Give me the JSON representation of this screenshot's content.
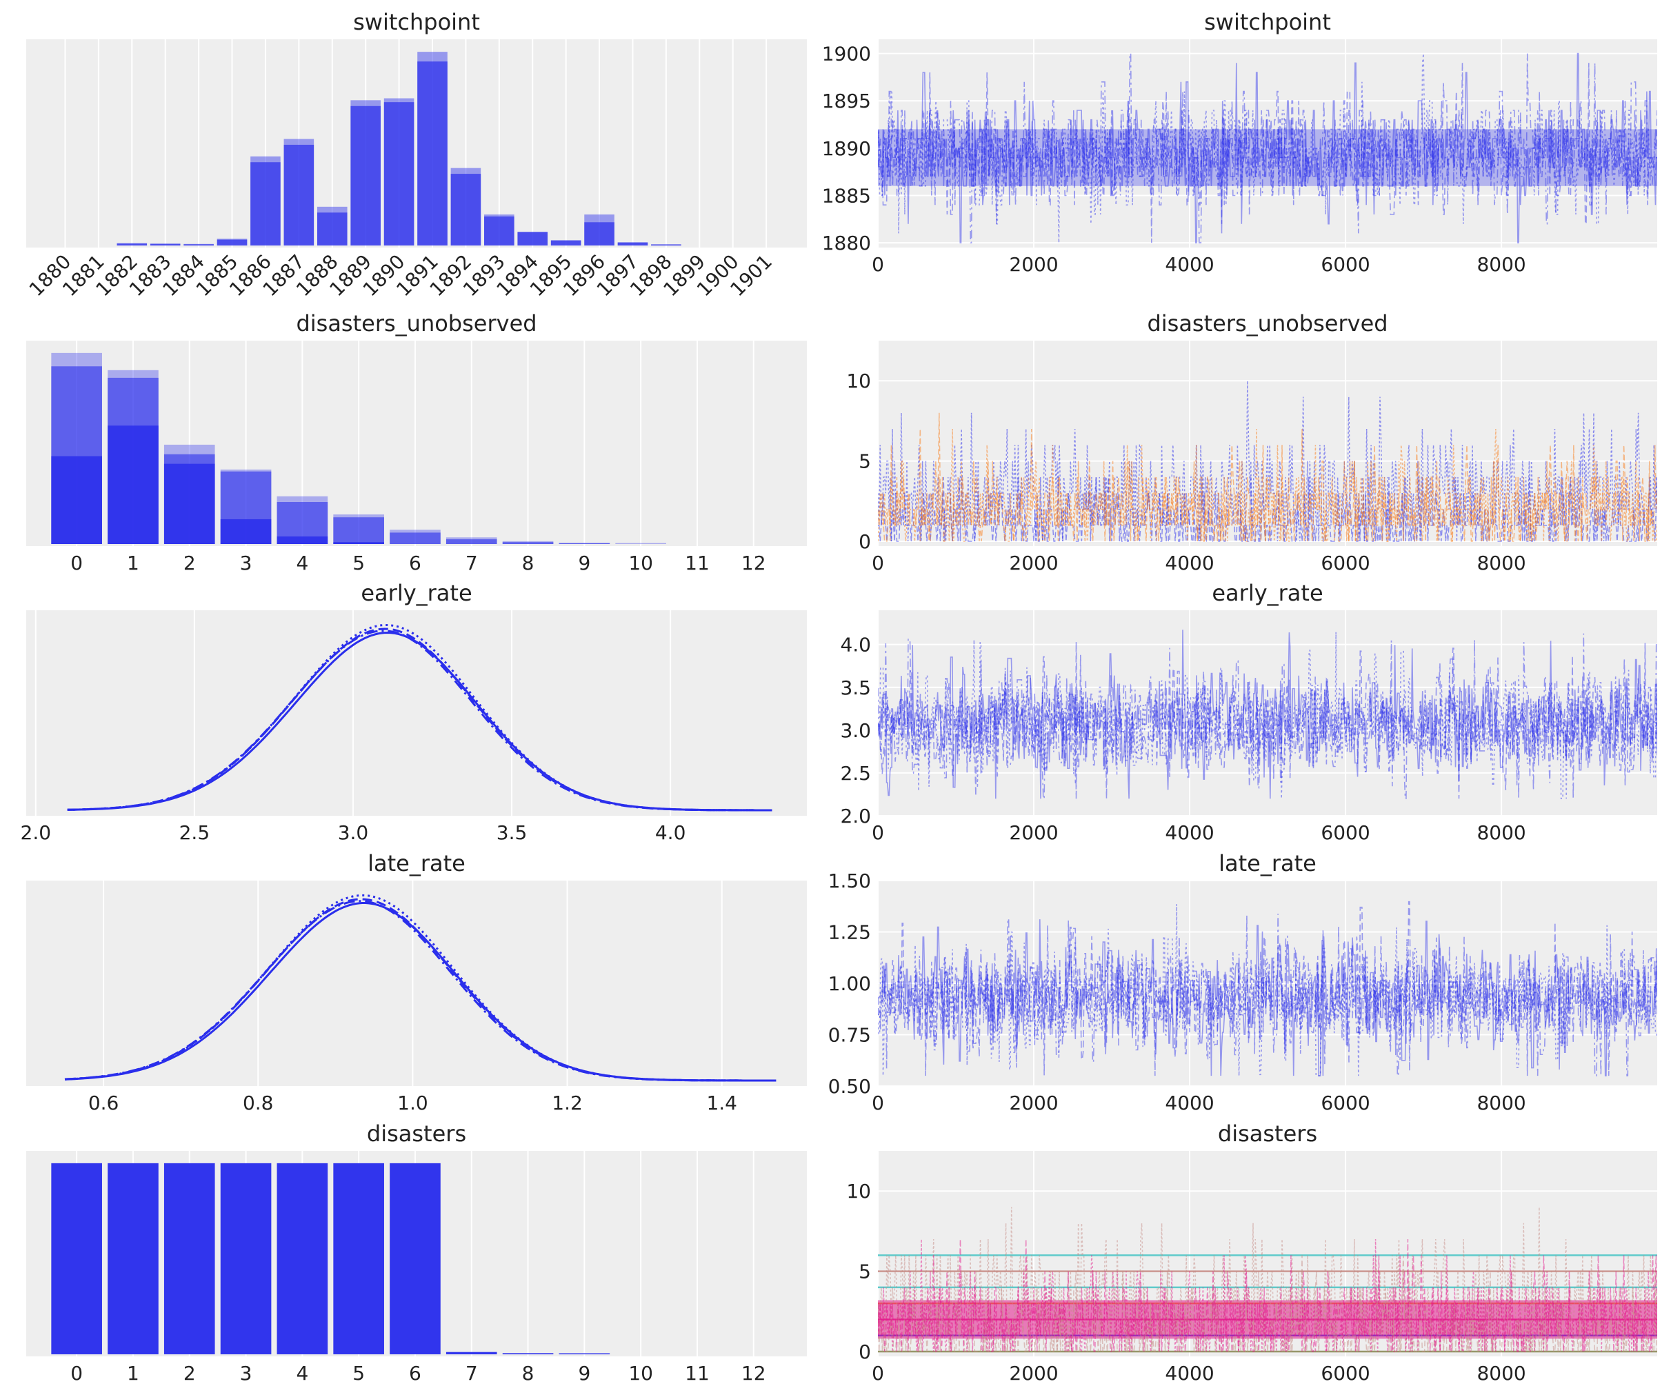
{
  "colors": {
    "background": "#ffffff",
    "panel": "#eeeeee",
    "grid": "#ffffff",
    "primary": "#2a2eec",
    "secondary": "#fa7c17",
    "disasters_trace": [
      "#c58c85",
      "#e41a8c",
      "#6b8e23",
      "#4ec5c5",
      "#fa7c17",
      "#2a2eec"
    ]
  },
  "chart_data": [
    {
      "id": "switchpoint-hist",
      "type": "bar",
      "title": "switchpoint",
      "categories": [
        "1880",
        "1881",
        "1882",
        "1883",
        "1884",
        "1885",
        "1886",
        "1887",
        "1888",
        "1889",
        "1890",
        "1891",
        "1892",
        "1893",
        "1894",
        "1895",
        "1896",
        "1897",
        "1898",
        "1899",
        "1900",
        "1901"
      ],
      "series": [
        {
          "values": [
            0,
            0,
            0.01,
            0.008,
            0.006,
            0.03,
            0.43,
            0.52,
            0.17,
            0.72,
            0.74,
            0.95,
            0.37,
            0.15,
            0.07,
            0.025,
            0.12,
            0.015,
            0.005,
            0,
            0,
            0
          ]
        },
        {
          "values": [
            0,
            0,
            0.012,
            0.01,
            0.008,
            0.035,
            0.46,
            0.55,
            0.2,
            0.75,
            0.76,
            1.0,
            0.4,
            0.16,
            0.07,
            0.028,
            0.16,
            0.017,
            0.006,
            0,
            0,
            0
          ]
        }
      ],
      "grid": true
    },
    {
      "id": "switchpoint-trace",
      "type": "line",
      "title": "switchpoint",
      "x_ticks": [
        0,
        2000,
        4000,
        6000,
        8000
      ],
      "y_ticks": [
        1880,
        1885,
        1890,
        1895,
        1900
      ],
      "xlim": [
        0,
        9999
      ],
      "ylim": [
        1879.5,
        1901.5
      ],
      "series_summary": {
        "center": 1889.3,
        "spread": 2.6,
        "samples_min": 1880,
        "samples_max": 1901
      },
      "grid": true
    },
    {
      "id": "disasters-unobserved-hist",
      "type": "bar",
      "title": "disasters_unobserved",
      "categories": [
        "0",
        "1",
        "2",
        "3",
        "4",
        "5",
        "6",
        "7",
        "8",
        "9",
        "10",
        "11",
        "12"
      ],
      "series": [
        {
          "values": [
            0.46,
            0.62,
            0.42,
            0.13,
            0.04,
            0.01,
            0,
            0,
            0,
            0,
            0,
            0,
            0
          ]
        },
        {
          "values": [
            0.93,
            0.87,
            0.47,
            0.38,
            0.22,
            0.14,
            0.06,
            0.025,
            0.01,
            0.004,
            0,
            0,
            0
          ]
        },
        {
          "values": [
            1.0,
            0.91,
            0.52,
            0.39,
            0.25,
            0.155,
            0.075,
            0.035,
            0.015,
            0.005,
            0.001,
            0,
            0
          ]
        }
      ],
      "grid": true
    },
    {
      "id": "disasters-unobserved-trace",
      "type": "line",
      "title": "disasters_unobserved",
      "x_ticks": [
        0,
        2000,
        4000,
        6000,
        8000
      ],
      "y_ticks": [
        0,
        5,
        10
      ],
      "xlim": [
        0,
        9999
      ],
      "ylim": [
        -0.3,
        12.5
      ],
      "grid": true
    },
    {
      "id": "early-rate-kde",
      "type": "line",
      "title": "early_rate",
      "x_ticks": [
        2.0,
        2.5,
        3.0,
        3.5,
        4.0
      ],
      "xlim": [
        1.97,
        4.43
      ],
      "x_range": [
        2.1,
        4.32
      ],
      "mean": 3.08,
      "sd": 0.285,
      "grid": true
    },
    {
      "id": "early-rate-trace",
      "type": "line",
      "title": "early_rate",
      "x_ticks": [
        0,
        2000,
        4000,
        6000,
        8000
      ],
      "y_ticks": [
        2.0,
        2.5,
        3.0,
        3.5,
        4.0
      ],
      "xlim": [
        0,
        9999
      ],
      "ylim": [
        2.0,
        4.4
      ],
      "series_summary": {
        "center": 3.07,
        "spread": 0.29,
        "samples_min": 2.2,
        "samples_max": 4.3
      },
      "grid": true
    },
    {
      "id": "late-rate-kde",
      "type": "line",
      "title": "late_rate",
      "x_ticks": [
        0.6,
        0.8,
        1.0,
        1.2,
        1.4
      ],
      "xlim": [
        0.5,
        1.51
      ],
      "x_range": [
        0.55,
        1.47
      ],
      "mean": 0.925,
      "sd": 0.12,
      "grid": true
    },
    {
      "id": "late-rate-trace",
      "type": "line",
      "title": "late_rate",
      "x_ticks": [
        0,
        2000,
        4000,
        6000,
        8000
      ],
      "y_ticks": [
        0.5,
        0.75,
        1.0,
        1.25,
        1.5
      ],
      "y_tick_labels": [
        "0.50",
        "0.75",
        "1.00",
        "1.25",
        "1.50"
      ],
      "xlim": [
        0,
        9999
      ],
      "ylim": [
        0.5,
        1.5
      ],
      "series_summary": {
        "center": 0.93,
        "spread": 0.12,
        "samples_min": 0.55,
        "samples_max": 1.47
      },
      "grid": true
    },
    {
      "id": "disasters-hist",
      "type": "bar",
      "title": "disasters",
      "categories": [
        "0",
        "1",
        "2",
        "3",
        "4",
        "5",
        "6",
        "7",
        "8",
        "9",
        "10",
        "11",
        "12"
      ],
      "values": [
        1.0,
        1.0,
        1.0,
        1.0,
        1.0,
        1.0,
        1.0,
        0.012,
        0.006,
        0.003,
        0,
        0,
        0
      ],
      "grid": true
    },
    {
      "id": "disasters-trace",
      "type": "line",
      "title": "disasters",
      "x_ticks": [
        0,
        2000,
        4000,
        6000,
        8000
      ],
      "y_ticks": [
        0,
        5,
        10
      ],
      "xlim": [
        0,
        9999
      ],
      "ylim": [
        -0.3,
        12.5
      ],
      "observed_levels": [
        0,
        1,
        2,
        3,
        4,
        5,
        6
      ],
      "grid": true
    }
  ]
}
